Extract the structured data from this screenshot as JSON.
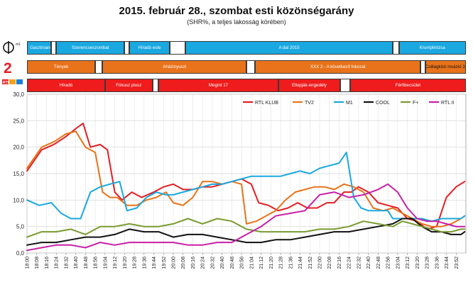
{
  "header": {
    "title": "2015. február 28., szombat esti közönségarány",
    "subtitle": "(SHR%, a teljes lakosság körében)"
  },
  "program_rows": [
    {
      "channel": "M1",
      "color": "#1aa8e0",
      "blocks": [
        {
          "label": "Gasztroangyal",
          "start": "18:00",
          "end": "18:20"
        },
        {
          "label": "",
          "start": "18:20",
          "end": "18:24"
        },
        {
          "label": "Szerencseszombat",
          "start": "18:24",
          "end": "19:20"
        },
        {
          "label": "",
          "start": "19:20",
          "end": "19:24"
        },
        {
          "label": "Híradó este",
          "start": "19:24",
          "end": "19:57"
        },
        {
          "label": "",
          "start": "19:57",
          "end": "20:10"
        },
        {
          "label": "A dal 2015",
          "start": "20:10",
          "end": "23:00"
        },
        {
          "label": "",
          "start": "23:00",
          "end": "23:05"
        },
        {
          "label": "Krumplirózsa",
          "start": "23:05",
          "end": "24:00"
        }
      ]
    },
    {
      "channel": "TV2",
      "color": "#e8731a",
      "blocks": [
        {
          "label": "Tények",
          "start": "18:00",
          "end": "18:56"
        },
        {
          "label": "",
          "start": "18:56",
          "end": "19:02"
        },
        {
          "label": "Aházinyuszi",
          "start": "19:02",
          "end": "21:00"
        },
        {
          "label": "",
          "start": "21:00",
          "end": "21:07"
        },
        {
          "label": "XXX 2 - A következő fokozat",
          "start": "21:07",
          "end": "23:23"
        },
        {
          "label": "",
          "start": "23:23",
          "end": "23:27"
        },
        {
          "label": "Csillagközi invázió 3.",
          "start": "23:27",
          "end": "24:00"
        }
      ]
    },
    {
      "channel": "RTL KLUB",
      "color": "#ee1c1c",
      "blocks": [
        {
          "label": "Híradó",
          "start": "18:00",
          "end": "19:04"
        },
        {
          "label": "Fókusz plusz",
          "start": "19:04",
          "end": "19:43"
        },
        {
          "label": "",
          "start": "19:43",
          "end": "19:48"
        },
        {
          "label": "Megint 17",
          "start": "19:48",
          "end": "21:26"
        },
        {
          "label": "Ellopják-engedély",
          "start": "21:26",
          "end": "22:17"
        },
        {
          "label": "",
          "start": "22:17",
          "end": "22:25"
        },
        {
          "label": "Férfibecsület",
          "start": "22:25",
          "end": "24:00"
        }
      ]
    }
  ],
  "logos": [
    {
      "icon": "m1-logo-icon",
      "text": "m1"
    },
    {
      "icon": "tv2-logo-icon",
      "text": "2"
    },
    {
      "icon": "rtl-klub-logo-icon",
      "text": "RTL"
    }
  ],
  "chart_data": {
    "type": "line",
    "title": "",
    "xlabel": "",
    "ylabel": "",
    "ylim": [
      0,
      30
    ],
    "yticks": [
      "0,0",
      "5,0",
      "10,0",
      "15,0",
      "20,0",
      "25,0",
      "30,0"
    ],
    "xlim": [
      "18:00",
      "24:00"
    ],
    "xticks": [
      "18:00",
      "18:08",
      "18:16",
      "18:24",
      "18:32",
      "18:40",
      "18:48",
      "18:56",
      "19:04",
      "19:12",
      "19:20",
      "19:28",
      "19:36",
      "19:44",
      "19:52",
      "20:00",
      "20:08",
      "20:16",
      "20:24",
      "20:32",
      "20:40",
      "20:48",
      "20:56",
      "21:04",
      "21:12",
      "21:20",
      "21:28",
      "21:36",
      "21:44",
      "21:52",
      "22:00",
      "22:08",
      "22:16",
      "22:24",
      "22:32",
      "22:40",
      "22:48",
      "22:56",
      "23:04",
      "23:12",
      "23:20",
      "23:28",
      "23:36",
      "23:44",
      "23:52"
    ],
    "grid": true,
    "legend_position": "top-right",
    "series": [
      {
        "name": "RTL KLUB",
        "color": "#e31e24",
        "x": [
          "18:00",
          "18:12",
          "18:22",
          "18:32",
          "18:40",
          "18:46",
          "18:52",
          "19:00",
          "19:06",
          "19:12",
          "19:18",
          "19:26",
          "19:34",
          "19:44",
          "19:52",
          "20:00",
          "20:08",
          "20:16",
          "20:24",
          "20:32",
          "20:40",
          "20:48",
          "20:56",
          "21:00",
          "21:04",
          "21:10",
          "21:18",
          "21:26",
          "21:34",
          "21:42",
          "21:50",
          "21:58",
          "22:06",
          "22:12",
          "22:20",
          "22:26",
          "22:32",
          "22:40",
          "22:48",
          "22:56",
          "23:04",
          "23:12",
          "23:20",
          "23:28",
          "23:36",
          "23:44",
          "23:52",
          "23:59"
        ],
        "y": [
          15.5,
          19.5,
          20.5,
          22.0,
          23.5,
          24.5,
          20.0,
          20.5,
          19.5,
          11.5,
          10.0,
          11.5,
          10.5,
          11.5,
          12.5,
          13.0,
          12.0,
          12.0,
          12.5,
          12.5,
          13.0,
          13.5,
          14.0,
          13.5,
          13.0,
          9.5,
          9.0,
          8.0,
          8.5,
          9.5,
          8.5,
          8.5,
          9.5,
          9.5,
          11.5,
          11.5,
          12.5,
          11.5,
          9.5,
          9.0,
          8.5,
          6.5,
          6.0,
          4.5,
          5.0,
          10.5,
          12.5,
          13.5
        ]
      },
      {
        "name": "TV2",
        "color": "#e8731a",
        "x": [
          "18:00",
          "18:12",
          "18:22",
          "18:32",
          "18:40",
          "18:48",
          "18:56",
          "19:02",
          "19:08",
          "19:14",
          "19:22",
          "19:30",
          "19:38",
          "19:46",
          "19:54",
          "20:00",
          "20:08",
          "20:16",
          "20:24",
          "20:32",
          "20:40",
          "20:48",
          "20:56",
          "21:00",
          "21:08",
          "21:16",
          "21:24",
          "21:32",
          "21:40",
          "21:48",
          "21:56",
          "22:04",
          "22:12",
          "22:20",
          "22:28",
          "22:36",
          "22:44",
          "22:52",
          "23:00",
          "23:08",
          "23:16",
          "23:24",
          "23:32",
          "23:40",
          "23:48",
          "23:56",
          "23:59"
        ],
        "y": [
          16.0,
          20.0,
          21.0,
          22.5,
          23.0,
          20.0,
          19.0,
          11.5,
          10.5,
          10.5,
          9.0,
          9.0,
          10.0,
          10.5,
          11.5,
          9.5,
          9.0,
          10.5,
          13.5,
          13.5,
          13.0,
          13.5,
          13.0,
          5.5,
          6.0,
          7.0,
          8.0,
          10.0,
          11.5,
          12.0,
          12.5,
          12.5,
          12.0,
          13.0,
          12.5,
          11.5,
          8.5,
          8.0,
          8.5,
          7.5,
          6.5,
          5.5,
          5.0,
          5.0,
          5.5,
          6.5,
          7.0
        ]
      },
      {
        "name": "M1",
        "color": "#1aa8e0",
        "x": [
          "18:00",
          "18:10",
          "18:20",
          "18:28",
          "18:36",
          "18:44",
          "18:52",
          "19:00",
          "19:08",
          "19:16",
          "19:22",
          "19:30",
          "19:38",
          "19:46",
          "19:54",
          "20:00",
          "20:08",
          "20:16",
          "20:24",
          "20:32",
          "20:40",
          "20:48",
          "20:56",
          "21:04",
          "21:12",
          "21:20",
          "21:28",
          "21:36",
          "21:44",
          "21:52",
          "22:00",
          "22:08",
          "22:16",
          "22:22",
          "22:28",
          "22:34",
          "22:40",
          "22:48",
          "22:56",
          "23:00",
          "23:08",
          "23:16",
          "23:24",
          "23:32",
          "23:40",
          "23:48",
          "23:56",
          "23:59"
        ],
        "y": [
          10.0,
          9.0,
          9.5,
          7.5,
          6.5,
          6.5,
          11.5,
          12.5,
          13.0,
          13.5,
          8.0,
          8.5,
          10.5,
          11.5,
          11.0,
          11.0,
          11.5,
          12.0,
          12.5,
          13.0,
          13.0,
          13.5,
          14.0,
          14.5,
          14.5,
          14.5,
          14.5,
          15.0,
          15.5,
          15.0,
          16.0,
          16.5,
          17.0,
          19.0,
          10.5,
          8.5,
          8.0,
          8.0,
          8.0,
          6.5,
          6.5,
          6.5,
          6.5,
          6.0,
          6.5,
          6.5,
          6.5,
          7.0
        ]
      },
      {
        "name": "COOL",
        "color": "#111111",
        "x": [
          "18:00",
          "18:12",
          "18:24",
          "18:36",
          "18:48",
          "19:00",
          "19:12",
          "19:24",
          "19:36",
          "19:48",
          "20:00",
          "20:12",
          "20:24",
          "20:36",
          "20:48",
          "21:00",
          "21:12",
          "21:24",
          "21:36",
          "21:48",
          "22:00",
          "22:12",
          "22:24",
          "22:36",
          "22:48",
          "23:00",
          "23:08",
          "23:16",
          "23:24",
          "23:32",
          "23:40",
          "23:48",
          "23:56",
          "23:59"
        ],
        "y": [
          1.5,
          2.0,
          2.0,
          2.5,
          3.0,
          3.0,
          3.5,
          4.5,
          4.0,
          4.0,
          3.0,
          3.5,
          3.5,
          3.0,
          2.5,
          2.0,
          2.0,
          2.5,
          2.5,
          3.0,
          3.5,
          4.0,
          4.0,
          4.5,
          5.0,
          5.5,
          6.5,
          6.5,
          5.0,
          4.0,
          4.0,
          3.5,
          3.5,
          4.0
        ]
      },
      {
        "name": "F+",
        "color": "#7a9a2f",
        "x": [
          "18:00",
          "18:12",
          "18:24",
          "18:36",
          "18:48",
          "19:00",
          "19:12",
          "19:24",
          "19:36",
          "19:48",
          "20:00",
          "20:12",
          "20:24",
          "20:36",
          "20:48",
          "21:00",
          "21:12",
          "21:24",
          "21:36",
          "21:48",
          "22:00",
          "22:12",
          "22:24",
          "22:36",
          "22:48",
          "23:00",
          "23:08",
          "23:16",
          "23:24",
          "23:32",
          "23:40",
          "23:48",
          "23:56",
          "23:59"
        ],
        "y": [
          3.0,
          4.0,
          4.0,
          4.5,
          3.5,
          5.0,
          5.0,
          5.5,
          5.0,
          5.0,
          5.5,
          6.5,
          5.5,
          6.5,
          6.0,
          4.5,
          4.0,
          4.0,
          4.0,
          4.0,
          4.5,
          4.5,
          5.0,
          6.0,
          5.5,
          5.0,
          6.0,
          5.5,
          5.0,
          4.5,
          4.0,
          4.0,
          4.5,
          4.5
        ]
      },
      {
        "name": "RTL II",
        "color": "#c71fa8",
        "x": [
          "18:00",
          "18:12",
          "18:24",
          "18:36",
          "18:48",
          "19:00",
          "19:12",
          "19:24",
          "19:36",
          "19:48",
          "20:00",
          "20:12",
          "20:24",
          "20:36",
          "20:48",
          "21:00",
          "21:12",
          "21:24",
          "21:36",
          "21:48",
          "22:00",
          "22:12",
          "22:24",
          "22:36",
          "22:48",
          "22:56",
          "23:04",
          "23:12",
          "23:20",
          "23:28",
          "23:36",
          "23:44",
          "23:52",
          "23:59"
        ],
        "y": [
          0.5,
          1.0,
          1.5,
          1.5,
          1.0,
          2.0,
          1.5,
          2.0,
          2.0,
          2.0,
          2.0,
          1.5,
          1.5,
          2.0,
          2.0,
          3.5,
          5.0,
          7.0,
          7.5,
          8.0,
          11.0,
          11.5,
          10.5,
          11.0,
          12.0,
          13.0,
          11.5,
          8.5,
          6.5,
          6.0,
          6.0,
          5.5,
          5.0,
          5.0
        ]
      }
    ]
  }
}
